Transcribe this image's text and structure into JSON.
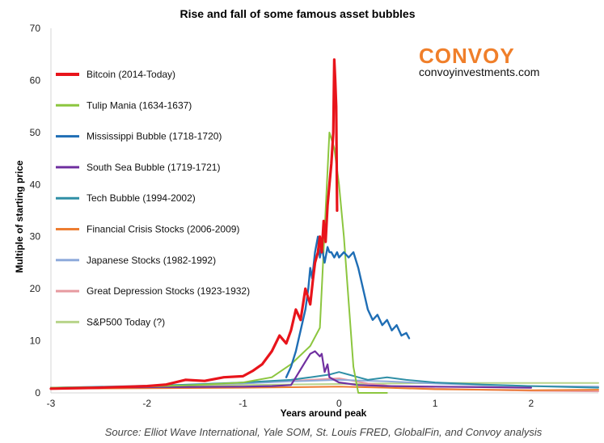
{
  "chart_data": {
    "type": "line",
    "title": "Rise and fall of some famous asset bubbles",
    "xlabel": "Years around peak",
    "ylabel": "Multiple of starting price",
    "xlim": [
      -3,
      2.7
    ],
    "ylim": [
      0,
      70
    ],
    "xticks": [
      -3,
      -2,
      -1,
      0,
      1,
      2
    ],
    "yticks": [
      0,
      10,
      20,
      30,
      40,
      50,
      60,
      70
    ],
    "grid": false,
    "legend_position": "top-left",
    "series": [
      {
        "name": "Bitcoin (2014-Today)",
        "color": "#e8141b",
        "width": 3.2,
        "x": [
          -3.0,
          -2.5,
          -2.0,
          -1.8,
          -1.6,
          -1.4,
          -1.2,
          -1.0,
          -0.9,
          -0.8,
          -0.7,
          -0.62,
          -0.55,
          -0.5,
          -0.45,
          -0.4,
          -0.35,
          -0.3,
          -0.27,
          -0.25,
          -0.22,
          -0.2,
          -0.18,
          -0.16,
          -0.14,
          -0.12,
          -0.1,
          -0.08,
          -0.06,
          -0.05,
          -0.04,
          -0.03,
          -0.02
        ],
        "y": [
          0.8,
          1.0,
          1.3,
          1.6,
          2.5,
          2.3,
          3.0,
          3.2,
          4.2,
          5.5,
          8.0,
          11.0,
          9.5,
          12.0,
          16.0,
          14.0,
          20.0,
          17.0,
          22.0,
          25.0,
          27.0,
          30.0,
          27.0,
          33.0,
          29.0,
          36.0,
          40.0,
          44.0,
          50.0,
          64.0,
          60.0,
          55.0,
          35.0
        ]
      },
      {
        "name": "Tulip Mania (1634-1637)",
        "color": "#8cc63f",
        "width": 2,
        "x": [
          -3.0,
          -2.0,
          -1.5,
          -1.0,
          -0.7,
          -0.5,
          -0.3,
          -0.2,
          -0.1,
          -0.05,
          0.0,
          0.05,
          0.15,
          0.2,
          0.3,
          0.5
        ],
        "y": [
          1.0,
          1.2,
          1.5,
          2.0,
          3.0,
          5.5,
          9.0,
          12.5,
          50.0,
          47.0,
          40.0,
          30.0,
          5.0,
          0.0,
          0.0,
          0.0
        ]
      },
      {
        "name": "Mississippi Bubble (1718-1720)",
        "color": "#1f6eb5",
        "width": 2.4,
        "x": [
          -0.55,
          -0.5,
          -0.45,
          -0.4,
          -0.35,
          -0.32,
          -0.3,
          -0.28,
          -0.25,
          -0.22,
          -0.2,
          -0.18,
          -0.15,
          -0.12,
          -0.1,
          -0.08,
          -0.05,
          -0.02,
          0.0,
          0.05,
          0.1,
          0.15,
          0.2,
          0.25,
          0.3,
          0.35,
          0.4,
          0.45,
          0.5,
          0.55,
          0.6,
          0.65,
          0.7,
          0.73
        ],
        "y": [
          3.0,
          5.0,
          8.0,
          12.0,
          16.0,
          20.0,
          24.0,
          22.0,
          27.0,
          30.0,
          26.0,
          28.0,
          25.0,
          28.0,
          27.0,
          27.0,
          26.0,
          27.0,
          26.0,
          27.0,
          26.0,
          27.0,
          24.0,
          20.0,
          16.0,
          14.0,
          15.0,
          13.0,
          14.0,
          12.0,
          13.0,
          11.0,
          11.5,
          10.5
        ]
      },
      {
        "name": "South Sea Bubble (1719-1721)",
        "color": "#7030a0",
        "width": 2.2,
        "x": [
          -3.0,
          -1.0,
          -0.7,
          -0.5,
          -0.45,
          -0.4,
          -0.35,
          -0.3,
          -0.25,
          -0.2,
          -0.18,
          -0.15,
          -0.12,
          -0.1,
          -0.05,
          0.0,
          0.2,
          0.5,
          1.0,
          1.5,
          2.0
        ],
        "y": [
          1.0,
          1.2,
          1.3,
          1.5,
          3.0,
          4.5,
          6.0,
          7.5,
          8.0,
          7.0,
          7.5,
          4.0,
          5.5,
          3.0,
          2.5,
          2.0,
          1.5,
          1.3,
          1.2,
          1.1,
          1.0
        ]
      },
      {
        "name": "Tech Bubble (1994-2002)",
        "color": "#2f8fa6",
        "width": 2,
        "x": [
          -3.0,
          -2.0,
          -1.0,
          -0.5,
          -0.3,
          -0.1,
          0.0,
          0.1,
          0.2,
          0.3,
          0.5,
          0.7,
          1.0,
          1.5,
          2.0,
          2.7
        ],
        "y": [
          1.0,
          1.3,
          2.0,
          2.5,
          3.0,
          3.5,
          4.0,
          3.5,
          3.0,
          2.5,
          3.0,
          2.5,
          2.0,
          1.6,
          1.3,
          1.0
        ]
      },
      {
        "name": "Financial Crisis Stocks (2006-2009)",
        "color": "#ed7d31",
        "width": 2,
        "x": [
          -3.0,
          -2.0,
          -1.0,
          0.0,
          0.5,
          1.0,
          1.5,
          2.0,
          2.7
        ],
        "y": [
          0.8,
          0.9,
          1.0,
          1.2,
          1.0,
          0.7,
          0.6,
          0.5,
          0.6
        ]
      },
      {
        "name": "Japanese Stocks (1982-1992)",
        "color": "#8eaadb",
        "width": 2,
        "x": [
          -3.0,
          -2.0,
          -1.0,
          -0.5,
          0.0,
          0.5,
          1.0,
          1.5,
          2.0,
          2.7
        ],
        "y": [
          1.0,
          1.4,
          1.8,
          2.2,
          2.5,
          2.2,
          1.8,
          1.5,
          1.3,
          1.2
        ]
      },
      {
        "name": "Great Depression Stocks (1923-1932)",
        "color": "#e79aa0",
        "width": 2,
        "x": [
          -3.0,
          -2.0,
          -1.0,
          -0.5,
          0.0,
          0.3,
          0.6,
          1.0,
          2.0,
          2.7
        ],
        "y": [
          1.0,
          1.3,
          1.8,
          2.3,
          2.8,
          1.8,
          1.2,
          0.8,
          0.4,
          0.3
        ]
      },
      {
        "name": "S&P500 Today (?)",
        "color": "#b8d48a",
        "width": 2,
        "x": [
          -3.0,
          -2.0,
          -1.0,
          0.0,
          0.5,
          1.0,
          1.5,
          2.0,
          2.7
        ],
        "y": [
          1.0,
          1.2,
          1.5,
          1.7,
          1.8,
          1.9,
          1.9,
          1.9,
          1.9
        ]
      }
    ]
  },
  "brand": {
    "name": "CONVOY",
    "url": "convoyinvestments.com",
    "color": "#f07f2a"
  },
  "source": "Source: Elliot Wave International, Yale SOM, St. Louis FRED, GlobalFin, and Convoy analysis"
}
